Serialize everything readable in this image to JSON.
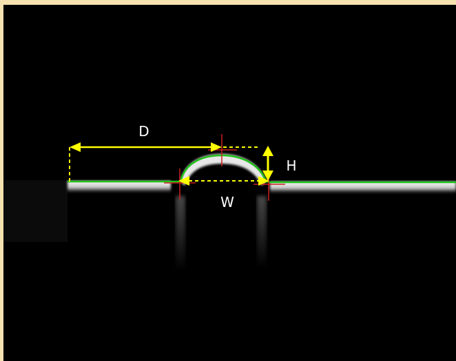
{
  "labels": {
    "distance": "D",
    "height": "H",
    "width": "W"
  },
  "colors": {
    "background_border": "#f6e2b0",
    "surface_trace": "#21c21a",
    "dimension_lines": "#ffff00",
    "markers": "#cc1f1f",
    "label_text": "#ffffff"
  }
}
